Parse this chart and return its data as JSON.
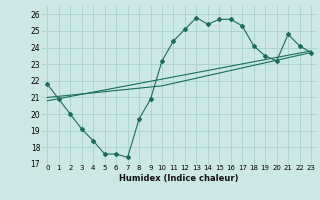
{
  "title": "",
  "xlabel": "Humidex (Indice chaleur)",
  "bg_color": "#cce8e5",
  "grid_color": "#aed4d0",
  "line_color": "#1a6b5e",
  "xlim": [
    -0.5,
    23.5
  ],
  "ylim": [
    17,
    26.5
  ],
  "xticks": [
    0,
    1,
    2,
    3,
    4,
    5,
    6,
    7,
    8,
    9,
    10,
    11,
    12,
    13,
    14,
    15,
    16,
    17,
    18,
    19,
    20,
    21,
    22,
    23
  ],
  "yticks": [
    17,
    18,
    19,
    20,
    21,
    22,
    23,
    24,
    25,
    26
  ],
  "line1_x": [
    0,
    1,
    2,
    3,
    4,
    5,
    6,
    7,
    8,
    9,
    10,
    11,
    12,
    13,
    14,
    15,
    16,
    17,
    18,
    19,
    20,
    21,
    22,
    23
  ],
  "line1_y": [
    21.8,
    20.9,
    20.0,
    19.1,
    18.4,
    17.6,
    17.6,
    17.4,
    19.7,
    20.9,
    23.2,
    24.4,
    25.1,
    25.8,
    25.4,
    25.7,
    25.7,
    25.3,
    24.1,
    23.5,
    23.2,
    24.8,
    24.1,
    23.7
  ],
  "line2_x": [
    0,
    10,
    23
  ],
  "line2_y": [
    21.0,
    21.7,
    23.7
  ],
  "line3_x": [
    0,
    23
  ],
  "line3_y": [
    20.8,
    23.8
  ]
}
